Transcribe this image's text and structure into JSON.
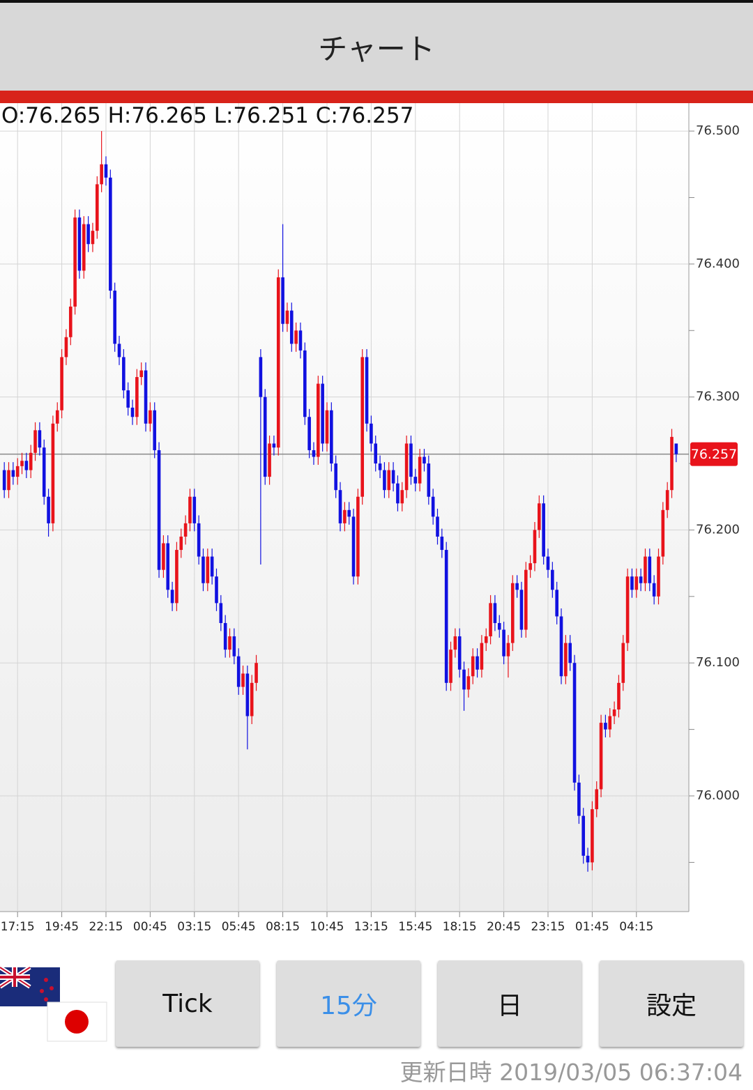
{
  "header": {
    "title": "チャート"
  },
  "ohlc_label": "O:76.265 H:76.265 L:76.251 C:76.257",
  "chart_data": {
    "type": "candlestick",
    "categories": [
      null,
      null,
      null,
      "17:15",
      null,
      null,
      null,
      null,
      null,
      null,
      null,
      null,
      null,
      "19:45",
      null,
      null,
      null,
      null,
      null,
      null,
      null,
      null,
      null,
      "22:15",
      null,
      null,
      null,
      null,
      null,
      null,
      null,
      null,
      null,
      "00:45",
      null,
      null,
      null,
      null,
      null,
      null,
      null,
      null,
      null,
      "03:15",
      null,
      null,
      null,
      null,
      null,
      null,
      null,
      null,
      null,
      "05:45",
      null,
      null,
      null,
      null,
      null,
      null,
      null,
      null,
      null,
      "08:15",
      null,
      null,
      null,
      null,
      null,
      null,
      null,
      null,
      null,
      "10:45",
      null,
      null,
      null,
      null,
      null,
      null,
      null,
      null,
      null,
      "13:15",
      null,
      null,
      null,
      null,
      null,
      null,
      null,
      null,
      null,
      "15:45",
      null,
      null,
      null,
      null,
      null,
      null,
      null,
      null,
      null,
      "18:15",
      null,
      null,
      null,
      null,
      null,
      null,
      null,
      null,
      null,
      "20:45",
      null,
      null,
      null,
      null,
      null,
      null,
      null,
      null,
      null,
      "23:15",
      null,
      null,
      null,
      null,
      null,
      null,
      null,
      null,
      null,
      "01:45",
      null,
      null,
      null,
      null,
      null,
      null,
      null,
      null,
      null,
      "04:15",
      null,
      null,
      null,
      null,
      null,
      null,
      null,
      null,
      null
    ],
    "ohlc": [
      [
        76.245,
        76.251,
        76.224,
        76.23
      ],
      [
        76.23,
        76.251,
        76.224,
        76.245
      ],
      [
        76.245,
        76.251,
        76.234,
        76.24
      ],
      [
        76.24,
        76.254,
        76.234,
        76.248
      ],
      [
        76.248,
        76.258,
        76.242,
        76.252
      ],
      [
        76.252,
        76.258,
        76.239,
        76.245
      ],
      [
        76.245,
        76.264,
        76.239,
        76.258
      ],
      [
        76.258,
        76.281,
        76.252,
        76.275
      ],
      [
        76.275,
        76.281,
        76.256,
        76.262
      ],
      [
        76.262,
        76.268,
        76.219,
        76.225
      ],
      [
        76.225,
        76.231,
        76.195,
        76.205
      ],
      [
        76.205,
        76.286,
        76.199,
        76.28
      ],
      [
        76.28,
        76.296,
        76.274,
        76.29
      ],
      [
        76.29,
        76.336,
        76.284,
        76.33
      ],
      [
        76.33,
        76.351,
        76.324,
        76.345
      ],
      [
        76.345,
        76.374,
        76.339,
        76.368
      ],
      [
        76.368,
        76.441,
        76.362,
        76.435
      ],
      [
        76.435,
        76.441,
        76.389,
        76.395
      ],
      [
        76.395,
        76.436,
        76.389,
        76.43
      ],
      [
        76.43,
        76.436,
        76.409,
        76.415
      ],
      [
        76.415,
        76.431,
        76.409,
        76.425
      ],
      [
        76.425,
        76.466,
        76.419,
        76.46
      ],
      [
        76.46,
        76.5,
        76.454,
        76.475
      ],
      [
        76.475,
        76.481,
        76.459,
        76.465
      ],
      [
        76.465,
        76.471,
        76.374,
        76.38
      ],
      [
        76.38,
        76.386,
        76.334,
        76.34
      ],
      [
        76.34,
        76.346,
        76.324,
        76.33
      ],
      [
        76.33,
        76.336,
        76.299,
        76.305
      ],
      [
        76.305,
        76.311,
        76.286,
        76.292
      ],
      [
        76.292,
        76.298,
        76.279,
        76.285
      ],
      [
        76.285,
        76.321,
        76.279,
        76.315
      ],
      [
        76.315,
        76.326,
        76.309,
        76.32
      ],
      [
        76.32,
        76.326,
        76.274,
        76.28
      ],
      [
        76.28,
        76.296,
        76.274,
        76.29
      ],
      [
        76.29,
        76.296,
        76.254,
        76.26
      ],
      [
        76.26,
        76.266,
        76.164,
        76.17
      ],
      [
        76.17,
        76.196,
        76.164,
        76.19
      ],
      [
        76.19,
        76.196,
        76.149,
        76.155
      ],
      [
        76.155,
        76.161,
        76.139,
        76.145
      ],
      [
        76.145,
        76.191,
        76.139,
        76.185
      ],
      [
        76.185,
        76.201,
        76.179,
        76.195
      ],
      [
        76.195,
        76.211,
        76.189,
        76.205
      ],
      [
        76.205,
        76.231,
        76.199,
        76.225
      ],
      [
        76.225,
        76.231,
        76.199,
        76.205
      ],
      [
        76.205,
        76.211,
        76.174,
        76.18
      ],
      [
        76.18,
        76.186,
        76.154,
        76.16
      ],
      [
        76.16,
        76.186,
        76.154,
        76.18
      ],
      [
        76.18,
        76.186,
        76.159,
        76.165
      ],
      [
        76.165,
        76.171,
        76.139,
        76.145
      ],
      [
        76.145,
        76.151,
        76.124,
        76.13
      ],
      [
        76.13,
        76.136,
        76.104,
        76.11
      ],
      [
        76.11,
        76.126,
        76.104,
        76.12
      ],
      [
        76.12,
        76.126,
        76.099,
        76.105
      ],
      [
        76.105,
        76.111,
        76.076,
        76.082
      ],
      [
        76.082,
        76.098,
        76.076,
        76.092
      ],
      [
        76.092,
        76.098,
        76.035,
        76.06
      ],
      [
        76.06,
        76.091,
        76.054,
        76.085
      ],
      [
        76.085,
        76.106,
        76.079,
        76.1
      ],
      [
        76.33,
        76.336,
        76.174,
        76.3
      ],
      [
        76.3,
        76.306,
        76.234,
        76.24
      ],
      [
        76.24,
        76.271,
        76.234,
        76.265
      ],
      [
        76.265,
        76.271,
        76.256,
        76.262
      ],
      [
        76.262,
        76.396,
        76.256,
        76.39
      ],
      [
        76.39,
        76.43,
        76.349,
        76.355
      ],
      [
        76.355,
        76.371,
        76.349,
        76.365
      ],
      [
        76.365,
        76.371,
        76.334,
        76.34
      ],
      [
        76.34,
        76.356,
        76.334,
        76.35
      ],
      [
        76.35,
        76.356,
        76.329,
        76.335
      ],
      [
        76.335,
        76.341,
        76.279,
        76.285
      ],
      [
        76.285,
        76.291,
        76.254,
        76.26
      ],
      [
        76.26,
        76.266,
        76.249,
        76.255
      ],
      [
        76.255,
        76.316,
        76.249,
        76.31
      ],
      [
        76.31,
        76.316,
        76.259,
        76.265
      ],
      [
        76.265,
        76.296,
        76.259,
        76.29
      ],
      [
        76.29,
        76.296,
        76.244,
        76.25
      ],
      [
        76.25,
        76.256,
        76.224,
        76.23
      ],
      [
        76.23,
        76.236,
        76.199,
        76.205
      ],
      [
        76.205,
        76.221,
        76.199,
        76.215
      ],
      [
        76.215,
        76.221,
        76.204,
        76.21
      ],
      [
        76.21,
        76.216,
        76.159,
        76.165
      ],
      [
        76.165,
        76.231,
        76.159,
        76.225
      ],
      [
        76.225,
        76.336,
        76.219,
        76.33
      ],
      [
        76.33,
        76.336,
        76.274,
        76.28
      ],
      [
        76.28,
        76.286,
        76.259,
        76.265
      ],
      [
        76.265,
        76.271,
        76.244,
        76.25
      ],
      [
        76.25,
        76.256,
        76.239,
        76.245
      ],
      [
        76.245,
        76.251,
        76.224,
        76.23
      ],
      [
        76.23,
        76.251,
        76.224,
        76.245
      ],
      [
        76.245,
        76.251,
        76.229,
        76.235
      ],
      [
        76.235,
        76.241,
        76.214,
        76.22
      ],
      [
        76.22,
        76.236,
        76.214,
        76.23
      ],
      [
        76.23,
        76.271,
        76.224,
        76.265
      ],
      [
        76.265,
        76.271,
        76.234,
        76.24
      ],
      [
        76.24,
        76.246,
        76.229,
        76.235
      ],
      [
        76.235,
        76.261,
        76.229,
        76.255
      ],
      [
        76.255,
        76.261,
        76.244,
        76.25
      ],
      [
        76.25,
        76.256,
        76.219,
        76.225
      ],
      [
        76.225,
        76.231,
        76.204,
        76.21
      ],
      [
        76.21,
        76.216,
        76.189,
        76.195
      ],
      [
        76.195,
        76.201,
        76.179,
        76.185
      ],
      [
        76.185,
        76.191,
        76.079,
        76.085
      ],
      [
        76.085,
        76.116,
        76.079,
        76.11
      ],
      [
        76.11,
        76.126,
        76.104,
        76.12
      ],
      [
        76.12,
        76.126,
        76.089,
        76.095
      ],
      [
        76.095,
        76.101,
        76.064,
        76.08
      ],
      [
        76.08,
        76.096,
        76.074,
        76.09
      ],
      [
        76.09,
        76.111,
        76.084,
        76.105
      ],
      [
        76.105,
        76.111,
        76.089,
        76.095
      ],
      [
        76.095,
        76.121,
        76.089,
        76.115
      ],
      [
        76.115,
        76.126,
        76.109,
        76.12
      ],
      [
        76.12,
        76.151,
        76.114,
        76.145
      ],
      [
        76.145,
        76.151,
        76.124,
        76.13
      ],
      [
        76.13,
        76.136,
        76.119,
        76.125
      ],
      [
        76.125,
        76.131,
        76.099,
        76.105
      ],
      [
        76.105,
        76.121,
        76.089,
        76.115
      ],
      [
        76.115,
        76.166,
        76.109,
        76.16
      ],
      [
        76.16,
        76.166,
        76.149,
        76.155
      ],
      [
        76.155,
        76.161,
        76.119,
        76.125
      ],
      [
        76.125,
        76.176,
        76.119,
        76.17
      ],
      [
        76.17,
        76.181,
        76.164,
        76.175
      ],
      [
        76.175,
        76.206,
        76.169,
        76.2
      ],
      [
        76.2,
        76.226,
        76.194,
        76.22
      ],
      [
        76.22,
        76.226,
        76.174,
        76.18
      ],
      [
        76.18,
        76.186,
        76.164,
        76.17
      ],
      [
        76.17,
        76.176,
        76.149,
        76.155
      ],
      [
        76.155,
        76.161,
        76.129,
        76.135
      ],
      [
        76.135,
        76.141,
        76.084,
        76.09
      ],
      [
        76.09,
        76.121,
        76.084,
        76.115
      ],
      [
        76.115,
        76.121,
        76.094,
        76.1
      ],
      [
        76.1,
        76.106,
        76.004,
        76.01
      ],
      [
        76.01,
        76.016,
        75.979,
        75.985
      ],
      [
        75.985,
        75.991,
        75.949,
        75.955
      ],
      [
        75.955,
        75.961,
        75.943,
        75.95
      ],
      [
        75.95,
        75.996,
        75.944,
        75.99
      ],
      [
        75.99,
        76.011,
        75.984,
        76.005
      ],
      [
        76.005,
        76.061,
        75.999,
        76.055
      ],
      [
        76.055,
        76.061,
        76.044,
        76.05
      ],
      [
        76.05,
        76.066,
        76.044,
        76.06
      ],
      [
        76.06,
        76.071,
        76.054,
        76.065
      ],
      [
        76.065,
        76.091,
        76.059,
        76.085
      ],
      [
        76.085,
        76.121,
        76.079,
        76.115
      ],
      [
        76.115,
        76.171,
        76.109,
        76.165
      ],
      [
        76.165,
        76.171,
        76.149,
        76.155
      ],
      [
        76.155,
        76.171,
        76.149,
        76.165
      ],
      [
        76.165,
        76.171,
        76.154,
        76.16
      ],
      [
        76.16,
        76.186,
        76.154,
        76.18
      ],
      [
        76.18,
        76.186,
        76.154,
        76.16
      ],
      [
        76.16,
        76.166,
        76.144,
        76.15
      ],
      [
        76.15,
        76.186,
        76.144,
        76.18
      ],
      [
        76.18,
        76.221,
        76.174,
        76.215
      ],
      [
        76.215,
        76.236,
        76.209,
        76.23
      ],
      [
        76.23,
        76.276,
        76.224,
        76.27
      ],
      [
        76.265,
        76.265,
        76.251,
        76.257
      ]
    ],
    "up_color": "#e8131b",
    "down_color": "#1111e0",
    "ylim": [
      75.913,
      76.521
    ],
    "yticks": [
      {
        "value": 76.0,
        "label": "76.000"
      },
      {
        "value": 76.1,
        "label": "76.100"
      },
      {
        "value": 76.2,
        "label": "76.200"
      },
      {
        "value": 76.3,
        "label": "76.300"
      },
      {
        "value": 76.4,
        "label": "76.400"
      },
      {
        "value": 76.5,
        "label": "76.500"
      }
    ],
    "minor_yticks": [
      75.95,
      76.05,
      76.15,
      76.25,
      76.35,
      76.45
    ],
    "grid": true,
    "current_price": 76.257,
    "current_price_color": "#e8131b"
  },
  "buttons": [
    "Tick",
    "15分",
    "日",
    "設定"
  ],
  "selected_button": 1,
  "updated": "更新日時 2019/03/05 06:37:04"
}
